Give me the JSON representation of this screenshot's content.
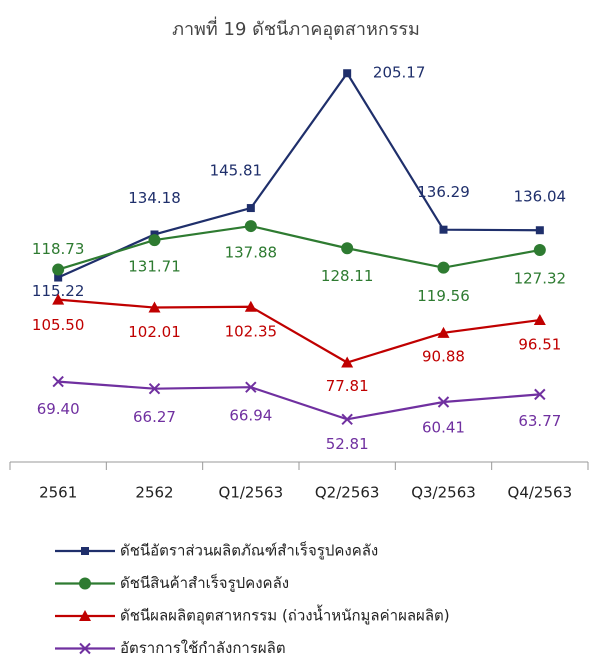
{
  "chart_data": {
    "type": "line",
    "title": "ภาพที่ 19 ดัชนีภาคอุตสาหกรรม",
    "categories": [
      "2561",
      "2562",
      "Q1/2563",
      "Q2/2563",
      "Q3/2563",
      "Q4/2563"
    ],
    "ylim": [
      34,
      211
    ],
    "series": [
      {
        "name": "ดัชนีอัตราส่วนผลิตภัณฑ์สำเร็จรูปคงคลัง",
        "color": "#1f2f6b",
        "marker": "square",
        "values": [
          115.22,
          134.18,
          145.81,
          205.17,
          136.29,
          136.04
        ],
        "value_labels": [
          "115.22",
          "134.18",
          "145.81",
          "205.17",
          "136.29",
          "136.04"
        ]
      },
      {
        "name": "ดัชนีสินค้าสำเร็จรูปคงคลัง",
        "color": "#2e7b31",
        "marker": "circle",
        "values": [
          118.73,
          131.71,
          137.88,
          128.11,
          119.56,
          127.32
        ],
        "value_labels": [
          "118.73",
          "131.71",
          "137.88",
          "128.11",
          "119.56",
          "127.32"
        ]
      },
      {
        "name": "ดัชนีผลผลิตอุตสาหกรรม (ถ่วงน้ำหนักมูลค่าผลผลิต)",
        "color": "#c00000",
        "marker": "triangle",
        "values": [
          105.5,
          102.01,
          102.35,
          77.81,
          90.88,
          96.51
        ],
        "value_labels": [
          "105.50",
          "102.01",
          "102.35",
          "77.81",
          "90.88",
          "96.51"
        ]
      },
      {
        "name": "อัตราการใช้กำลังการผลิต",
        "color": "#7030a0",
        "marker": "x",
        "values": [
          69.4,
          66.27,
          66.94,
          52.81,
          60.41,
          63.77
        ],
        "value_labels": [
          "69.40",
          "66.27",
          "66.94",
          "52.81",
          "60.41",
          "63.77"
        ]
      }
    ]
  }
}
